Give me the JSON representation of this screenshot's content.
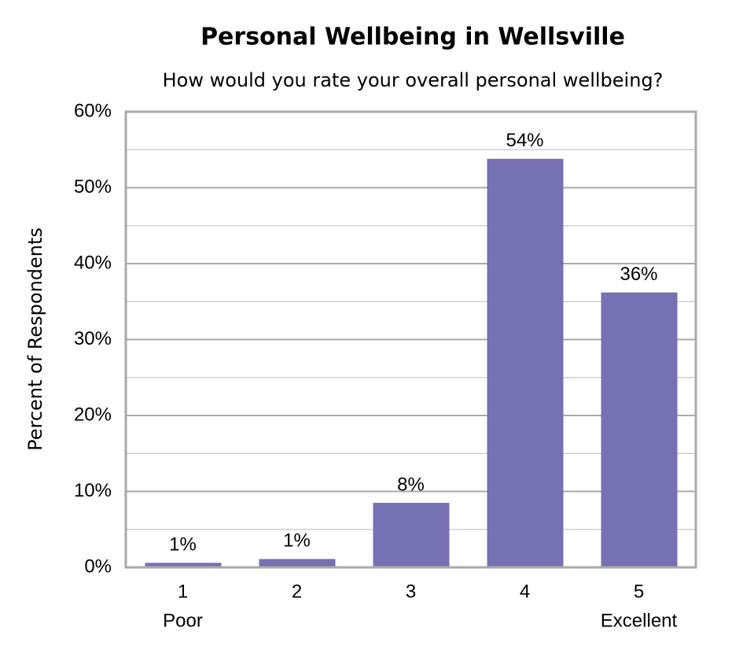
{
  "chart_data": {
    "type": "bar",
    "title": "Personal Wellbeing in Wellsville",
    "subtitle": "How would you rate your overall personal wellbeing?",
    "y_label": "Percent of Respondents",
    "categories": [
      "1",
      "2",
      "3",
      "4",
      "5"
    ],
    "category_sublabels": [
      "Poor",
      null,
      null,
      null,
      "Excellent"
    ],
    "values": [
      0.6,
      1.1,
      8.5,
      53.8,
      36.2
    ],
    "value_labels": [
      "1%",
      "1%",
      "8%",
      "54%",
      "36%"
    ],
    "color": "#7571b3",
    "ylim": [
      0,
      60
    ],
    "yticks": [
      {
        "value": 0,
        "label": "0%"
      },
      {
        "value": 10,
        "label": "10%"
      },
      {
        "value": 20,
        "label": "20%"
      },
      {
        "value": 30,
        "label": "30%"
      },
      {
        "value": 40,
        "label": "40%"
      },
      {
        "value": 50,
        "label": "50%"
      },
      {
        "value": 60,
        "label": "60%"
      }
    ],
    "minor_yticks": [
      5,
      15,
      25,
      35,
      45,
      55
    ],
    "grid": true
  }
}
